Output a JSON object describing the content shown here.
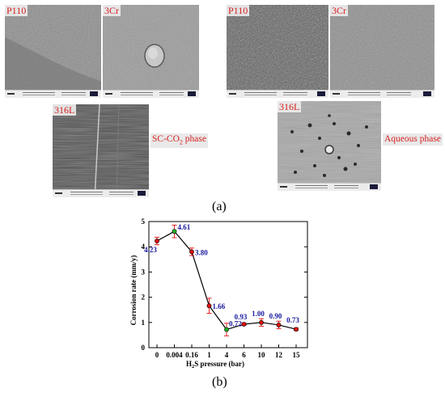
{
  "panel_a": {
    "label": "(a)",
    "sc_co2": {
      "tags": [
        "P110",
        "3Cr",
        "316L"
      ],
      "phase": "SC-CO2 phase",
      "phase_base": "SC-CO",
      "phase_sub": "2",
      "phase_rest": " phase"
    },
    "aqueous": {
      "tags": [
        "P110",
        "3Cr",
        "316L"
      ],
      "phase": "Aqueous phase"
    }
  },
  "panel_b": {
    "label": "(b)"
  },
  "chart_data": {
    "type": "line",
    "title": "",
    "xlabel": "H2S pressure (bar)",
    "ylabel": "Corrosion rate (mm/y)",
    "categories": [
      "0",
      "0.004",
      "0.16",
      "1",
      "4",
      "6",
      "10",
      "12",
      "15"
    ],
    "values": [
      4.23,
      4.61,
      3.8,
      1.66,
      0.72,
      0.93,
      1.0,
      0.9,
      0.73
    ],
    "value_labels": [
      "4.23",
      "4.61",
      "3.80",
      "1.66",
      "0.72",
      "0.93",
      "1.00",
      "0.90",
      "0.73"
    ],
    "errors": [
      0.15,
      0.25,
      0.15,
      0.3,
      0.25,
      0.05,
      0.15,
      0.15,
      0.05
    ],
    "ylim": [
      0,
      5
    ],
    "yticks": [
      0,
      1,
      2,
      3,
      4,
      5
    ],
    "highlighted_points": [
      "0.004",
      "4"
    ],
    "colors": {
      "line": "#000000",
      "marker": "#e01010",
      "highlight": "#20b020",
      "error": "#e01010",
      "value_label": "#1a1aa0"
    },
    "grid": false
  }
}
